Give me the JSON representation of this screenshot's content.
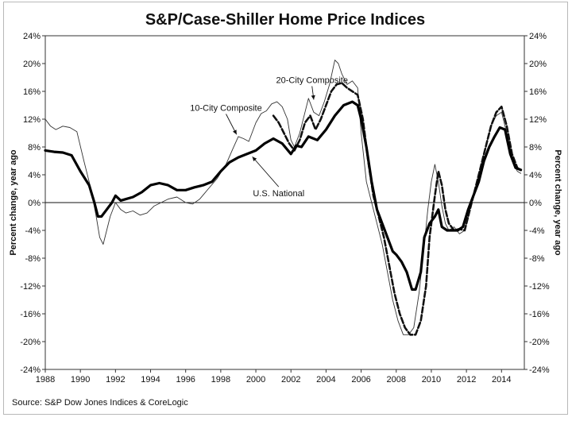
{
  "chart_data": {
    "type": "line",
    "title": "S&P/Case-Shiller Home Price Indices",
    "ylabel_left": "Percent change, year ago",
    "ylabel_right": "Percent change, year ago",
    "xlabel": "",
    "xlim": [
      1988,
      2015.3
    ],
    "ylim": [
      -24,
      24
    ],
    "x_ticks": [
      1988,
      1990,
      1992,
      1994,
      1996,
      1998,
      2000,
      2002,
      2004,
      2006,
      2008,
      2010,
      2012,
      2014
    ],
    "y_ticks": [
      {
        "v": 24,
        "label": "24%"
      },
      {
        "v": 20,
        "label": "20%"
      },
      {
        "v": 16,
        "label": "16%"
      },
      {
        "v": 12,
        "label": "12%"
      },
      {
        "v": 8,
        "label": "8%"
      },
      {
        "v": 4,
        "label": "4%"
      },
      {
        "v": 0,
        "label": "0%"
      },
      {
        "v": -4,
        "label": "-4%"
      },
      {
        "v": -8,
        "label": "-8%"
      },
      {
        "v": -12,
        "label": "-12%"
      },
      {
        "v": -16,
        "label": "-16%"
      },
      {
        "v": -20,
        "label": "-20%"
      },
      {
        "v": -24,
        "label": "-24%"
      }
    ],
    "zero_line": true,
    "annotations": [
      {
        "text": "20-City Composite",
        "x": 2003.2,
        "y": 17.2,
        "arrow_to": [
          2003.3,
          14.8
        ]
      },
      {
        "text": "10-City Composite",
        "x": 1998.3,
        "y": 13.2,
        "arrow_to": [
          1998.9,
          9.8
        ]
      },
      {
        "text": "U.S. National",
        "x": 2001.3,
        "y": 0.9,
        "arrow_to": [
          1999.8,
          6.6
        ]
      }
    ],
    "series": [
      {
        "name": "10-City Composite",
        "style": "thin",
        "x": [
          1988,
          1988.3,
          1988.6,
          1989,
          1989.4,
          1989.8,
          1990.2,
          1990.6,
          1990.9,
          1991.1,
          1991.3,
          1991.5,
          1991.7,
          1992,
          1992.3,
          1992.6,
          1993,
          1993.4,
          1993.8,
          1994.2,
          1994.6,
          1995,
          1995.5,
          1996,
          1996.4,
          1996.8,
          1997.3,
          1997.8,
          1998.3,
          1998.7,
          1999,
          1999.3,
          1999.6,
          2000,
          2000.3,
          2000.6,
          2000.9,
          2001.2,
          2001.5,
          2001.8,
          2002,
          2002.2,
          2002.5,
          2002.8,
          2003,
          2003.3,
          2003.6,
          2003.9,
          2004.2,
          2004.5,
          2004.7,
          2004.9,
          2005.2,
          2005.5,
          2005.8,
          2006,
          2006.3,
          2006.6,
          2006.9,
          2007.2,
          2007.5,
          2007.8,
          2008.1,
          2008.4,
          2008.7,
          2009,
          2009.3,
          2009.6,
          2009.8,
          2010,
          2010.2,
          2010.4,
          2010.6,
          2010.8,
          2011,
          2011.3,
          2011.6,
          2011.9,
          2012.2,
          2012.5,
          2012.8,
          2013.1,
          2013.4,
          2013.7,
          2014,
          2014.3,
          2014.6,
          2014.9,
          2015.1
        ],
        "values": [
          12,
          11,
          10.5,
          11,
          10.8,
          10.2,
          6,
          2,
          -2,
          -5,
          -6,
          -4,
          -2,
          0,
          -1,
          -1.5,
          -1.2,
          -1.8,
          -1.5,
          -0.5,
          0,
          0.5,
          0.8,
          0,
          -0.2,
          0.5,
          2,
          3.5,
          5.5,
          7.8,
          9.5,
          9.2,
          8.8,
          11.5,
          12.8,
          13.2,
          14.2,
          14.5,
          13.8,
          12,
          9,
          8,
          10,
          13,
          15,
          13,
          12.5,
          14.5,
          17,
          20.5,
          20,
          18.5,
          17,
          17.5,
          16.5,
          10,
          3,
          0,
          -3,
          -6,
          -10,
          -14,
          -17,
          -19,
          -19,
          -18,
          -13,
          -6,
          -1,
          3,
          5.5,
          3,
          -0.5,
          -3,
          -4,
          -3.5,
          -4.5,
          -4,
          -1,
          2,
          5,
          8,
          11,
          12.5,
          13,
          10,
          6,
          4.5,
          4.2
        ]
      },
      {
        "name": "20-City Composite",
        "style": "dashed",
        "x": [
          2001,
          2001.3,
          2001.6,
          2001.9,
          2002.2,
          2002.5,
          2002.8,
          2003.1,
          2003.4,
          2003.7,
          2004,
          2004.3,
          2004.6,
          2004.9,
          2005.2,
          2005.5,
          2005.8,
          2006.1,
          2006.4,
          2006.7,
          2007,
          2007.3,
          2007.6,
          2007.9,
          2008.2,
          2008.5,
          2008.8,
          2009.1,
          2009.4,
          2009.7,
          2009.9,
          2010.2,
          2010.4,
          2010.6,
          2010.8,
          2011,
          2011.3,
          2011.6,
          2011.9,
          2012.2,
          2012.5,
          2012.8,
          2013.1,
          2013.4,
          2013.7,
          2014,
          2014.3,
          2014.6,
          2014.9,
          2015.1
        ],
        "values": [
          12.5,
          11.5,
          10,
          8.5,
          7.5,
          9,
          11.5,
          12.5,
          10.5,
          12,
          14,
          16,
          17,
          17.2,
          16.5,
          16,
          15.5,
          12,
          6,
          1,
          -2,
          -5,
          -9,
          -13,
          -16,
          -18,
          -19,
          -19,
          -17,
          -12,
          -5,
          1,
          4.5,
          2.5,
          -1,
          -3,
          -4,
          -3.8,
          -4,
          -1,
          2,
          5,
          8,
          11,
          13,
          13.8,
          11,
          7,
          5,
          4.6
        ]
      },
      {
        "name": "U.S. National",
        "style": "thick",
        "x": [
          1988,
          1988.5,
          1989,
          1989.5,
          1990,
          1990.5,
          1990.8,
          1991,
          1991.2,
          1991.5,
          1991.8,
          1992,
          1992.3,
          1992.6,
          1993,
          1993.5,
          1994,
          1994.5,
          1995,
          1995.5,
          1996,
          1996.5,
          1997,
          1997.5,
          1998,
          1998.5,
          1999,
          1999.5,
          2000,
          2000.5,
          2001,
          2001.5,
          2002,
          2002.3,
          2002.6,
          2003,
          2003.5,
          2004,
          2004.5,
          2005,
          2005.5,
          2005.8,
          2006,
          2006.3,
          2006.6,
          2006.9,
          2007.2,
          2007.5,
          2007.8,
          2008,
          2008.3,
          2008.6,
          2008.9,
          2009.1,
          2009.4,
          2009.6,
          2009.9,
          2010.2,
          2010.4,
          2010.6,
          2010.9,
          2011.2,
          2011.5,
          2011.8,
          2012.1,
          2012.4,
          2012.7,
          2013,
          2013.3,
          2013.6,
          2013.9,
          2014.2,
          2014.5,
          2014.8,
          2015.1
        ],
        "values": [
          7.5,
          7.3,
          7.2,
          6.8,
          4.5,
          2.5,
          0,
          -2,
          -2,
          -1,
          0,
          1,
          0.3,
          0.5,
          0.8,
          1.5,
          2.5,
          2.8,
          2.5,
          1.8,
          1.8,
          2.2,
          2.5,
          3,
          4.5,
          5.8,
          6.5,
          7,
          7.5,
          8.5,
          9.2,
          8.5,
          7,
          8.2,
          8,
          9.5,
          9,
          10.5,
          12.5,
          14,
          14.5,
          14,
          12,
          8,
          3,
          -1,
          -3,
          -5,
          -7,
          -7.5,
          -8.5,
          -10,
          -12.5,
          -12.5,
          -10,
          -5,
          -3,
          -2,
          -1,
          -3.5,
          -4,
          -4,
          -4,
          -3.5,
          -1,
          1,
          3,
          6,
          8,
          9.5,
          10.8,
          10.5,
          7,
          5,
          4.7
        ]
      }
    ],
    "source": "Source: S&P Dow Jones Indices & CoreLogic"
  }
}
